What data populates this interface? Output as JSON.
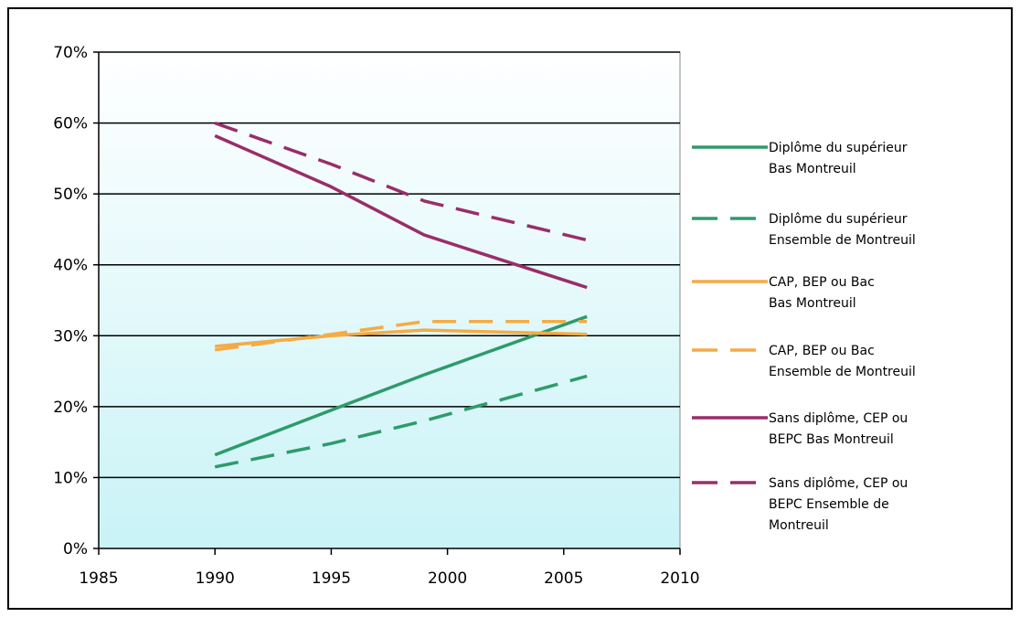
{
  "chart_data": {
    "type": "line",
    "xlim": [
      1985,
      2010
    ],
    "ylim": [
      0,
      70
    ],
    "x_ticks": [
      "1985",
      "1990",
      "1995",
      "2000",
      "2005",
      "2010"
    ],
    "y_ticks": [
      "0%",
      "10%",
      "20%",
      "30%",
      "40%",
      "50%",
      "60%",
      "70%"
    ],
    "grid": true,
    "legend_position": "right",
    "plot_background": [
      "#ffffff",
      "#c9f3f7"
    ],
    "series": [
      {
        "name_lines": [
          "Diplôme du supérieur",
          "Bas Montreuil"
        ],
        "color": "#2e9b6a",
        "dashed": false,
        "points": [
          [
            1990,
            13.2
          ],
          [
            1995,
            19.5
          ],
          [
            1999,
            24.5
          ],
          [
            2006,
            32.7
          ]
        ]
      },
      {
        "name_lines": [
          "Diplôme du supérieur",
          "Ensemble de Montreuil"
        ],
        "color": "#2e9b6a",
        "dashed": true,
        "points": [
          [
            1990,
            11.5
          ],
          [
            1995,
            14.8
          ],
          [
            1999,
            18.0
          ],
          [
            2006,
            24.3
          ]
        ]
      },
      {
        "name_lines": [
          "CAP, BEP ou Bac",
          "Bas Montreuil"
        ],
        "color": "#f5ab45",
        "dashed": false,
        "points": [
          [
            1990,
            28.5
          ],
          [
            1995,
            30.0
          ],
          [
            1999,
            30.8
          ],
          [
            2006,
            30.2
          ]
        ]
      },
      {
        "name_lines": [
          "CAP, BEP ou Bac",
          "Ensemble de Montreuil"
        ],
        "color": "#f5ab45",
        "dashed": true,
        "points": [
          [
            1990,
            28.0
          ],
          [
            1995,
            30.2
          ],
          [
            1999,
            32.0
          ],
          [
            2006,
            32.0
          ]
        ]
      },
      {
        "name_lines": [
          "Sans diplôme, CEP ou",
          "BEPC  Bas Montreuil"
        ],
        "color": "#9a2d6a",
        "dashed": false,
        "points": [
          [
            1990,
            58.2
          ],
          [
            1995,
            51.0
          ],
          [
            1999,
            44.2
          ],
          [
            2006,
            36.8
          ]
        ]
      },
      {
        "name_lines": [
          "Sans diplôme, CEP ou",
          "BEPC  Ensemble de",
          "Montreuil"
        ],
        "color": "#9a2d6a",
        "dashed": true,
        "points": [
          [
            1990,
            60.0
          ],
          [
            1995,
            54.2
          ],
          [
            1999,
            49.0
          ],
          [
            2006,
            43.5
          ]
        ]
      }
    ]
  }
}
